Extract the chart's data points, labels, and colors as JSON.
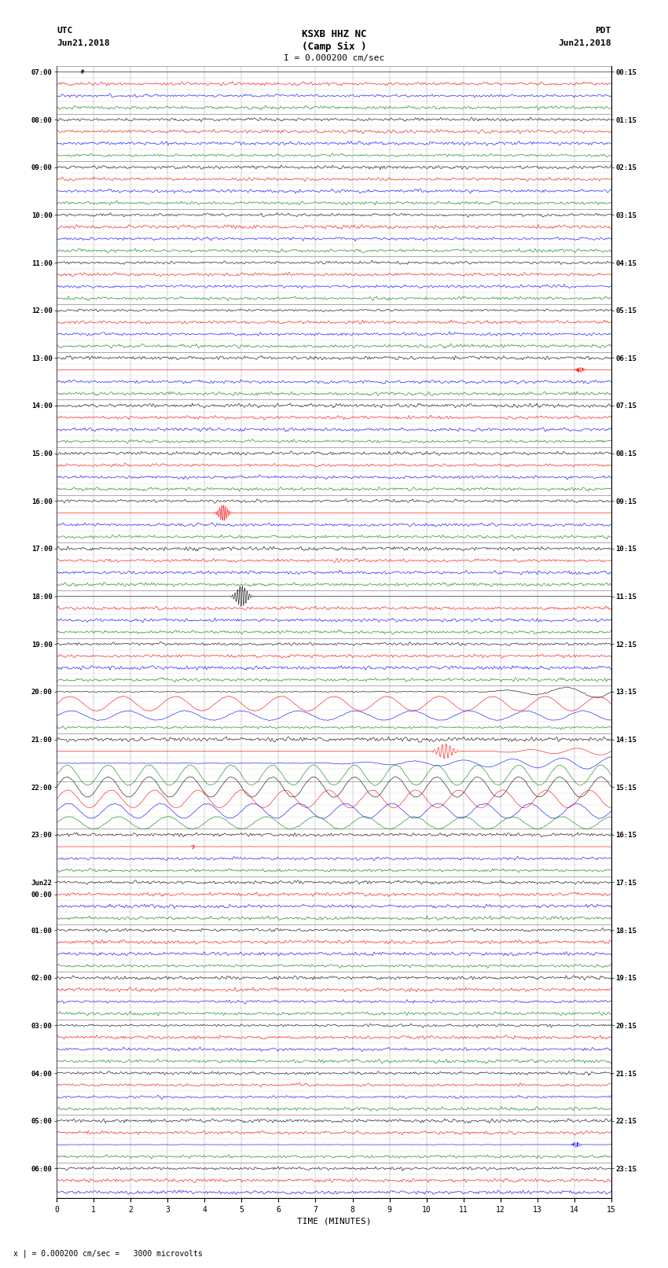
{
  "title_line1": "KSXB HHZ NC",
  "title_line2": "(Camp Six )",
  "scale_text": "I = 0.000200 cm/sec",
  "bottom_scale_text": "x | = 0.000200 cm/sec =   3000 microvolts",
  "utc_label": "UTC",
  "utc_date": "Jun21,2018",
  "pdt_label": "PDT",
  "pdt_date": "Jun21,2018",
  "xlabel": "TIME (MINUTES)",
  "fig_width": 8.5,
  "fig_height": 16.13,
  "bg_color": "#ffffff",
  "trace_colors": [
    "black",
    "red",
    "blue",
    "green"
  ],
  "left_times_utc": [
    "07:00",
    "",
    "",
    "",
    "08:00",
    "",
    "",
    "",
    "09:00",
    "",
    "",
    "",
    "10:00",
    "",
    "",
    "",
    "11:00",
    "",
    "",
    "",
    "12:00",
    "",
    "",
    "",
    "13:00",
    "",
    "",
    "",
    "14:00",
    "",
    "",
    "",
    "15:00",
    "",
    "",
    "",
    "16:00",
    "",
    "",
    "",
    "17:00",
    "",
    "",
    "",
    "18:00",
    "",
    "",
    "",
    "19:00",
    "",
    "",
    "",
    "20:00",
    "",
    "",
    "",
    "21:00",
    "",
    "",
    "",
    "22:00",
    "",
    "",
    "",
    "23:00",
    "",
    "",
    "",
    "Jun22",
    "00:00",
    "",
    "",
    "01:00",
    "",
    "",
    "",
    "02:00",
    "",
    "",
    "",
    "03:00",
    "",
    "",
    "",
    "04:00",
    "",
    "",
    "",
    "05:00",
    "",
    "",
    "",
    "06:00",
    "",
    ""
  ],
  "right_times_pdt": [
    "00:15",
    "",
    "",
    "",
    "01:15",
    "",
    "",
    "",
    "02:15",
    "",
    "",
    "",
    "03:15",
    "",
    "",
    "",
    "04:15",
    "",
    "",
    "",
    "05:15",
    "",
    "",
    "",
    "06:15",
    "",
    "",
    "",
    "07:15",
    "",
    "",
    "",
    "08:15",
    "",
    "",
    "",
    "09:15",
    "",
    "",
    "",
    "10:15",
    "",
    "",
    "",
    "11:15",
    "",
    "",
    "",
    "12:15",
    "",
    "",
    "",
    "13:15",
    "",
    "",
    "",
    "14:15",
    "",
    "",
    "",
    "15:15",
    "",
    "",
    "",
    "16:15",
    "",
    "",
    "",
    "17:15",
    "",
    "",
    "",
    "18:15",
    "",
    "",
    "",
    "19:15",
    "",
    "",
    "",
    "20:15",
    "",
    "",
    "",
    "21:15",
    "",
    "",
    "",
    "22:15",
    "",
    "",
    "",
    "23:15",
    "",
    ""
  ],
  "n_rows": 95,
  "time_minutes": 15,
  "trace_linewidth": 0.4,
  "xmin": 0,
  "xmax": 15
}
